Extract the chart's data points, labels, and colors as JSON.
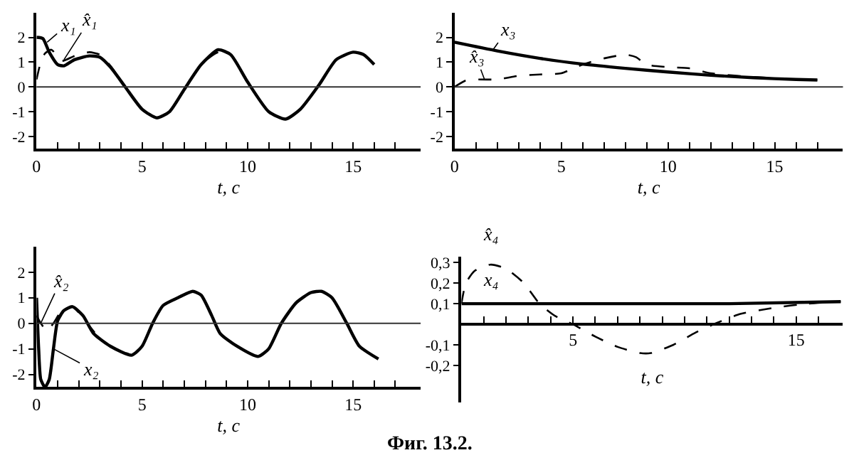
{
  "chart_data": [
    {
      "type": "line",
      "xlabel": "t, c",
      "xlim": [
        0,
        18.2
      ],
      "ylim": [
        -2.5,
        3
      ],
      "xticks": [
        0,
        {
          "value": 1,
          "label": null
        },
        {
          "value": 2,
          "label": null
        },
        {
          "value": 3,
          "label": null
        },
        {
          "value": 4,
          "label": null
        },
        5,
        {
          "value": 6,
          "label": null
        },
        {
          "value": 7,
          "label": null
        },
        {
          "value": 8,
          "label": null
        },
        {
          "value": 9,
          "label": null
        },
        10,
        {
          "value": 11,
          "label": null
        },
        {
          "value": 12,
          "label": null
        },
        {
          "value": 13,
          "label": null
        },
        {
          "value": 14,
          "label": null
        },
        15,
        {
          "value": 16,
          "label": null
        },
        {
          "value": 17,
          "label": null
        }
      ],
      "yticks": [
        -2,
        -1,
        0,
        1,
        2
      ],
      "ref_lines": [
        {
          "axis": "y",
          "value": 0
        }
      ],
      "series": [
        {
          "color": "#000000",
          "line_style": "solid",
          "x": [
            0,
            0.3,
            0.6,
            1,
            1.3,
            1.8,
            2.5,
            3,
            3.5,
            4.2,
            5,
            5.7,
            6.3,
            7,
            7.8,
            8.6,
            9.2,
            10,
            11,
            11.8,
            12.5,
            13.4,
            14.2,
            15,
            15.5,
            16
          ],
          "values": [
            2,
            1.95,
            1.4,
            0.9,
            0.85,
            1.1,
            1.25,
            1.2,
            0.8,
            0,
            -0.9,
            -1.25,
            -1,
            -0.1,
            0.9,
            1.5,
            1.3,
            0.2,
            -1,
            -1.3,
            -0.9,
            0.1,
            1.1,
            1.4,
            1.3,
            0.9
          ]
        },
        {
          "color": "#000000",
          "line_style": "dashed",
          "x": [
            0,
            0.2,
            0.4,
            0.7,
            1.2,
            1.8,
            2.5,
            3,
            3.5,
            4.2,
            5,
            5.7,
            6.3,
            7,
            7.8,
            8.6,
            9.2,
            10
          ],
          "values": [
            0.3,
            1,
            1.35,
            1.5,
            1.05,
            1.25,
            1.4,
            1.3,
            0.85,
            0,
            -0.9,
            -1.25,
            -1,
            -0.1,
            0.9,
            1.4,
            1.3,
            0.2
          ]
        }
      ],
      "annotations": [
        {
          "text": "x₁",
          "x": 0.5,
          "y": 1.8
        },
        {
          "text": "x̂₁",
          "x": 1.3,
          "y": 1.1
        }
      ]
    },
    {
      "type": "line",
      "xlabel": "t, c",
      "xlim": [
        0,
        18.2
      ],
      "ylim": [
        -2.5,
        3
      ],
      "xticks": [
        0,
        {
          "value": 1,
          "label": null
        },
        {
          "value": 2,
          "label": null
        },
        {
          "value": 3,
          "label": null
        },
        {
          "value": 4,
          "label": null
        },
        5,
        {
          "value": 6,
          "label": null
        },
        {
          "value": 7,
          "label": null
        },
        {
          "value": 8,
          "label": null
        },
        {
          "value": 9,
          "label": null
        },
        10,
        {
          "value": 11,
          "label": null
        },
        {
          "value": 12,
          "label": null
        },
        {
          "value": 13,
          "label": null
        },
        {
          "value": 14,
          "label": null
        },
        15,
        {
          "value": 16,
          "label": null
        },
        {
          "value": 17,
          "label": null
        }
      ],
      "yticks": [
        -2,
        -1,
        0,
        1,
        2
      ],
      "ref_lines": [
        {
          "axis": "y",
          "value": 0
        }
      ],
      "series": [
        {
          "color": "#000000",
          "line_style": "solid",
          "x": [
            0,
            2,
            4,
            6,
            8,
            10,
            12,
            14,
            16,
            17
          ],
          "values": [
            1.8,
            1.45,
            1.15,
            0.92,
            0.75,
            0.6,
            0.47,
            0.37,
            0.3,
            0.28
          ]
        },
        {
          "color": "#000000",
          "line_style": "dashed",
          "x": [
            0,
            0.5,
            1,
            2,
            3,
            4,
            5,
            6,
            7,
            8,
            8.5,
            9,
            10,
            11,
            12,
            14,
            16,
            17
          ],
          "values": [
            0,
            0.25,
            0.3,
            0.3,
            0.45,
            0.5,
            0.55,
            0.9,
            1.15,
            1.3,
            1.2,
            0.9,
            0.8,
            0.75,
            0.55,
            0.4,
            0.3,
            0.28
          ]
        }
      ],
      "annotations": [
        {
          "text": "x₃",
          "x": 1.8,
          "y": 1.5
        },
        {
          "text": "x̂₃",
          "x": 1.4,
          "y": 0.3
        }
      ]
    },
    {
      "type": "line",
      "xlabel": "t, c",
      "xlim": [
        0,
        18.2
      ],
      "ylim": [
        -2.5,
        3
      ],
      "xticks": [
        0,
        {
          "value": 1,
          "label": null
        },
        {
          "value": 2,
          "label": null
        },
        {
          "value": 3,
          "label": null
        },
        {
          "value": 4,
          "label": null
        },
        5,
        {
          "value": 6,
          "label": null
        },
        {
          "value": 7,
          "label": null
        },
        {
          "value": 8,
          "label": null
        },
        {
          "value": 9,
          "label": null
        },
        10,
        {
          "value": 11,
          "label": null
        },
        {
          "value": 12,
          "label": null
        },
        {
          "value": 13,
          "label": null
        },
        {
          "value": 14,
          "label": null
        },
        15,
        {
          "value": 16,
          "label": null
        },
        {
          "value": 17,
          "label": null
        }
      ],
      "yticks": [
        -2,
        -1,
        0,
        1,
        2
      ],
      "ref_lines": [
        {
          "axis": "y",
          "value": 0
        }
      ],
      "series": [
        {
          "color": "#000000",
          "line_style": "solid",
          "x": [
            0,
            0.1,
            0.2,
            0.4,
            0.6,
            0.8,
            1,
            1.3,
            1.7,
            2.2,
            2.7,
            3.5,
            4.5,
            5,
            5.5,
            6,
            6.7,
            7.4,
            7.8,
            8.3,
            8.7,
            9.5,
            10.5,
            11,
            11.6,
            12.3,
            13,
            13.5,
            14,
            14.7,
            15.3,
            16.2
          ],
          "values": [
            1,
            -1,
            -2.2,
            -2.5,
            -2.2,
            -1,
            0.1,
            0.5,
            0.65,
            0.3,
            -0.4,
            -0.9,
            -1.25,
            -0.9,
            0,
            0.7,
            1,
            1.25,
            1.1,
            0.3,
            -0.4,
            -0.9,
            -1.3,
            -1,
            0,
            0.8,
            1.2,
            1.25,
            1,
            0,
            -0.9,
            -1.4
          ]
        },
        {
          "color": "#000000",
          "line_style": "dashed",
          "x": [
            0,
            0.2,
            0.5,
            0.8,
            1.2,
            1.7,
            2.3,
            3,
            3.5,
            4.5
          ],
          "values": [
            0.3,
            0,
            -0.3,
            0,
            0.5,
            0.65,
            0.1,
            -0.6,
            -0.9,
            -1.25
          ]
        }
      ],
      "annotations": [
        {
          "text": "x̂₂",
          "x": 0.2,
          "y": 0
        },
        {
          "text": "x₂",
          "x": 0.8,
          "y": -1
        }
      ]
    },
    {
      "type": "line",
      "xlabel": "t, c",
      "xlim": [
        0,
        17.1
      ],
      "ylim": [
        -0.38,
        0.33
      ],
      "xticks": [
        {
          "value": 1,
          "label": null
        },
        {
          "value": 2,
          "label": null
        },
        {
          "value": 3,
          "label": null
        },
        {
          "value": 4,
          "label": null
        },
        5,
        {
          "value": 6,
          "label": null
        },
        {
          "value": 7,
          "label": null
        },
        {
          "value": 8,
          "label": null
        },
        {
          "value": 9,
          "label": null
        },
        {
          "value": 10,
          "label": null
        },
        {
          "value": 11,
          "label": null
        },
        {
          "value": 12,
          "label": null
        },
        {
          "value": 13,
          "label": null
        },
        {
          "value": 14,
          "label": null
        },
        15,
        {
          "value": 16,
          "label": null
        }
      ],
      "yticks": [
        {
          "value": -0.2,
          "label": "-0,2"
        },
        {
          "value": -0.1,
          "label": "-0,1"
        },
        {
          "value": 0.1,
          "label": "0,1"
        },
        {
          "value": 0.2,
          "label": "0,2"
        },
        {
          "value": 0.3,
          "label": "0,3"
        }
      ],
      "series": [
        {
          "color": "#000000",
          "line_style": "solid",
          "x": [
            0,
            12,
            17
          ],
          "values": [
            0.1,
            0.1,
            0.11
          ]
        },
        {
          "color": "#000000",
          "line_style": "dashed",
          "x": [
            0,
            0.2,
            0.6,
            1.3,
            2,
            2.8,
            3.5,
            4.2,
            5,
            6,
            7,
            8,
            8.5,
            9.5,
            10.5,
            11.3,
            12.5,
            14,
            15.5,
            17
          ],
          "values": [
            0.1,
            0.2,
            0.26,
            0.29,
            0.27,
            0.2,
            0.1,
            0.04,
            0,
            -0.06,
            -0.11,
            -0.14,
            -0.14,
            -0.1,
            -0.04,
            0,
            0.05,
            0.08,
            0.1,
            0.11
          ]
        }
      ],
      "annotations": [
        {
          "text": "x̂₄",
          "x": 1.3,
          "y": 0.29
        },
        {
          "text": "x₄",
          "x": 1.3,
          "y": 0.1
        },
        "Фиг. 13.2."
      ]
    }
  ]
}
